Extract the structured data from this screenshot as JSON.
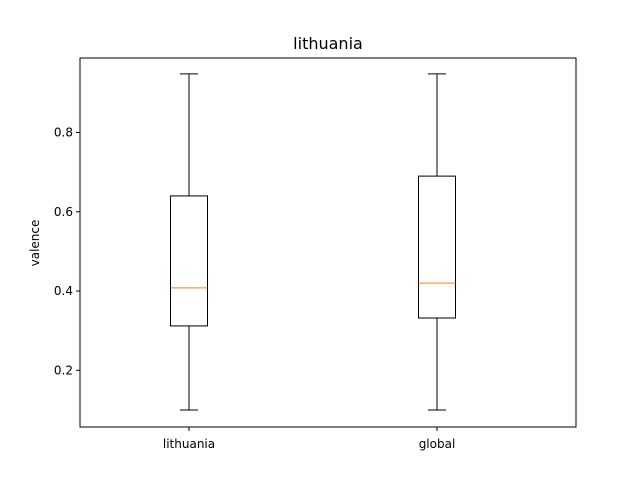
{
  "chart_data": {
    "type": "box",
    "title": "lithuania",
    "xlabel": "",
    "ylabel": "valence",
    "ylim": [
      0.057,
      0.988
    ],
    "yticks": [
      "0.2",
      "0.4",
      "0.6",
      "0.8"
    ],
    "ytick_values": [
      0.2,
      0.4,
      0.6,
      0.8
    ],
    "categories": [
      "lithuania",
      "global"
    ],
    "boxes": [
      {
        "label": "lithuania",
        "whislo": 0.1,
        "q1": 0.312,
        "med": 0.408,
        "q3": 0.64,
        "whishi": 0.948
      },
      {
        "label": "global",
        "whislo": 0.1,
        "q1": 0.332,
        "med": 0.42,
        "q3": 0.69,
        "whishi": 0.948
      }
    ],
    "grid": false,
    "colors": {
      "box": "#000000",
      "median": "#ff7f0e"
    }
  }
}
